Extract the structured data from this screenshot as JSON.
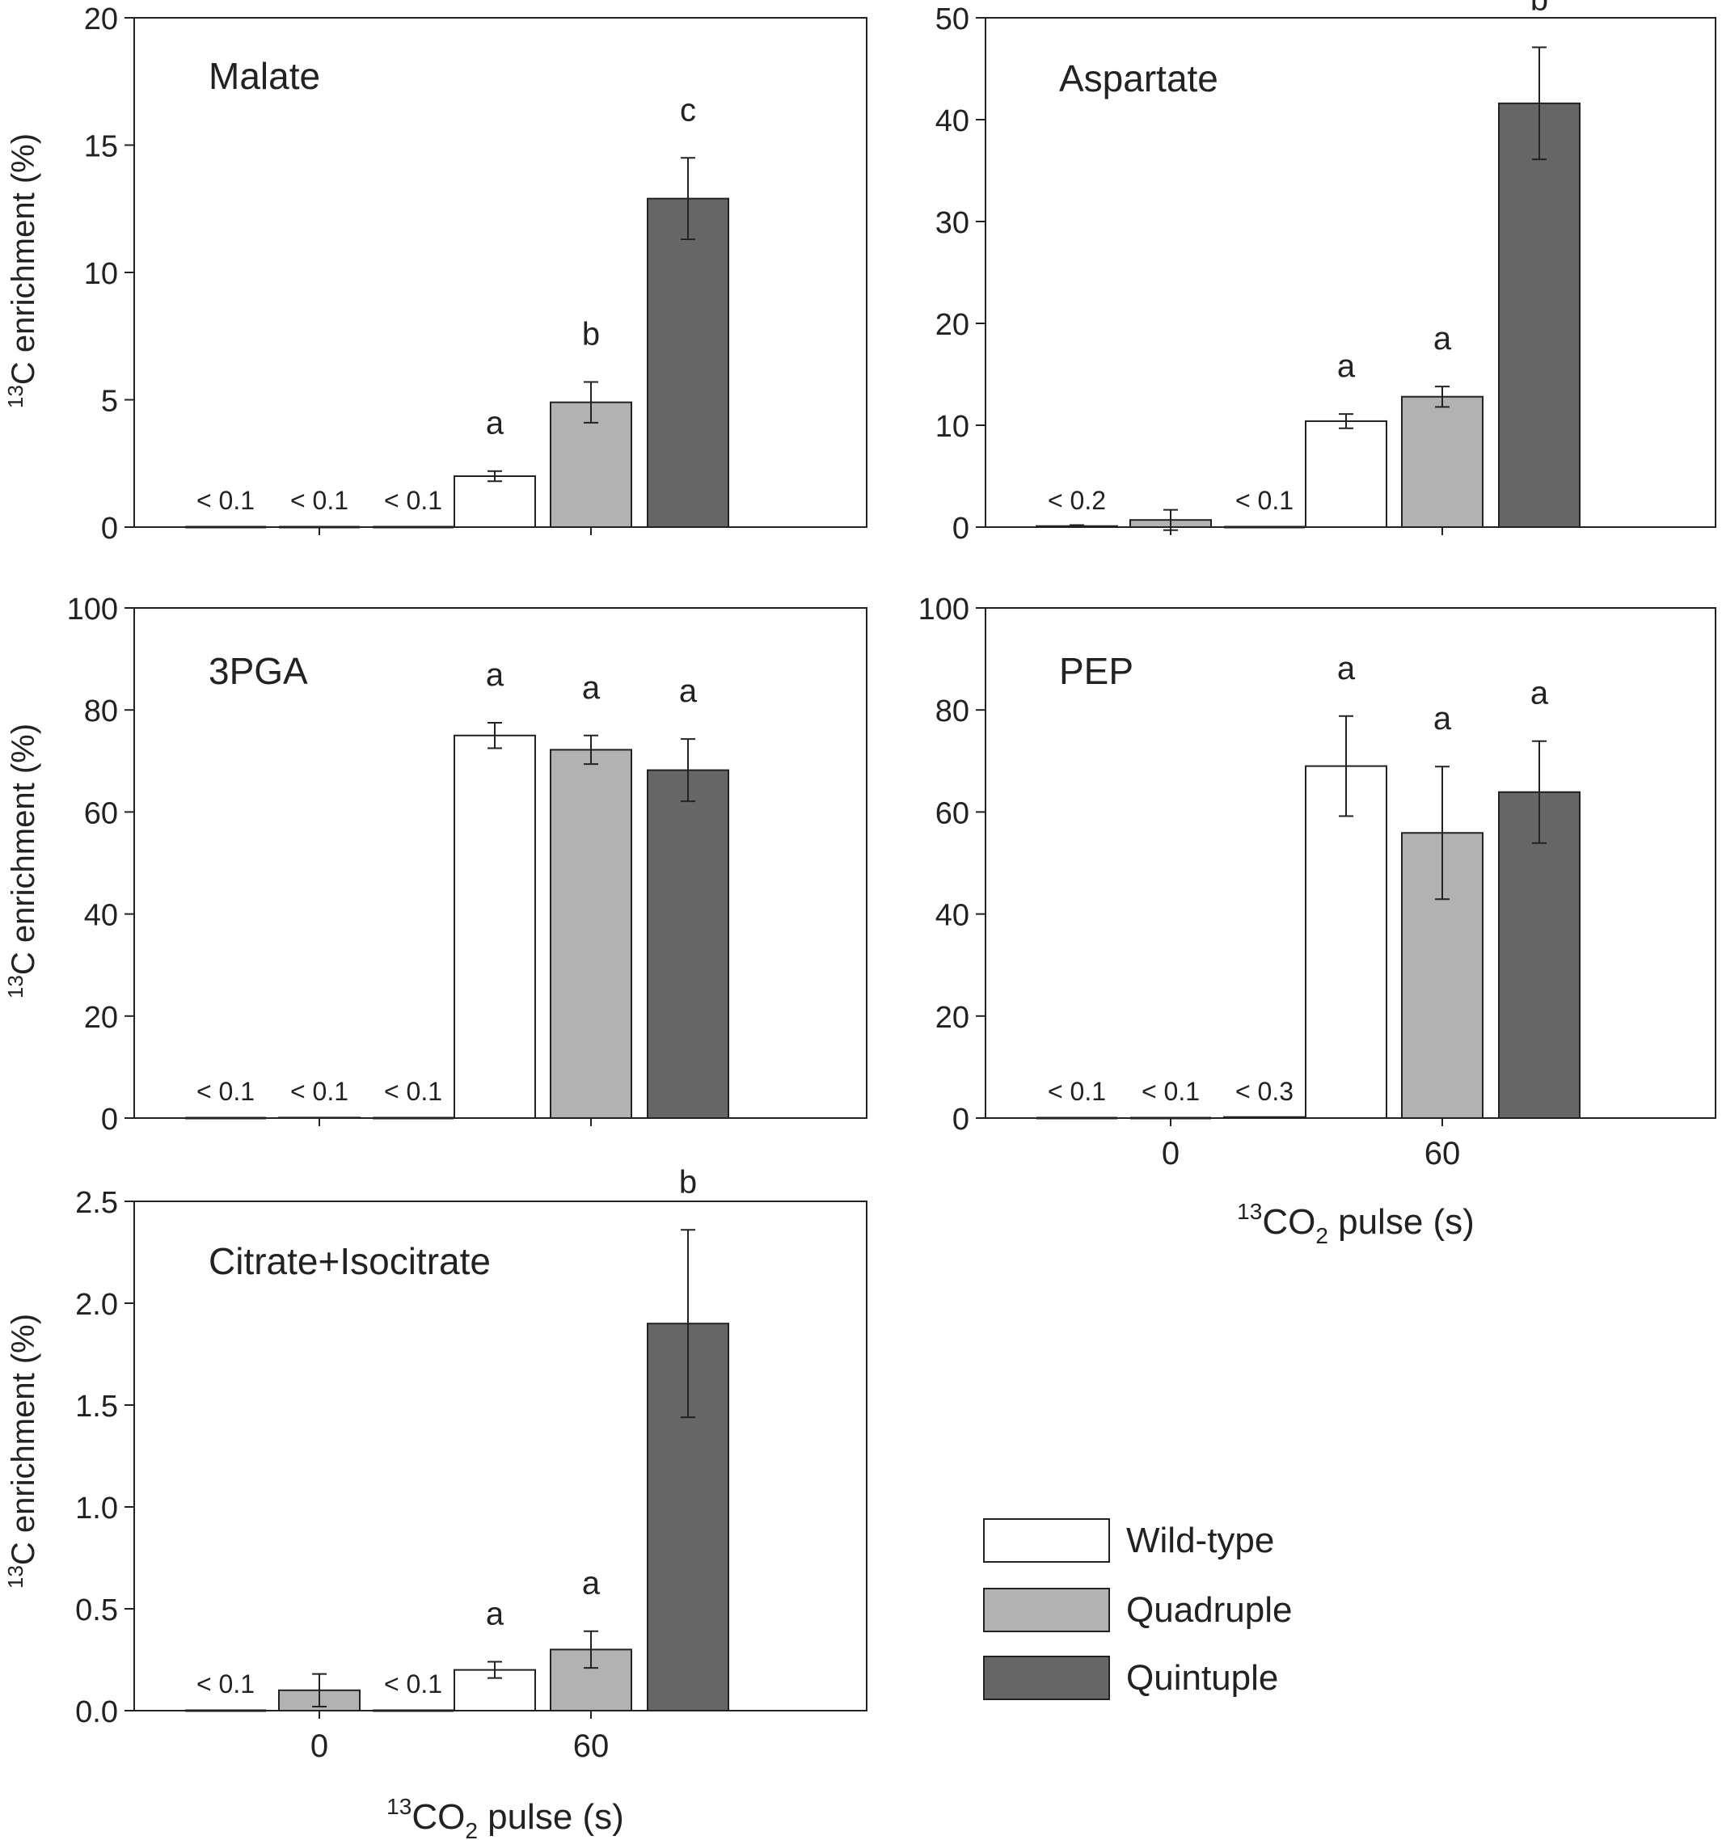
{
  "colors": {
    "wild_type": "#ffffff",
    "quadruple": "#b2b2b2",
    "quintuple": "#666666",
    "axis": "#222222"
  },
  "legend": [
    {
      "key": "wild_type",
      "label": "Wild-type"
    },
    {
      "key": "quadruple",
      "label": "Quadruple"
    },
    {
      "key": "quintuple",
      "label": "Quintuple"
    }
  ],
  "xlabel": {
    "sup": "13",
    "pre": "CO",
    "sub": "2",
    "post": " pulse (s)"
  },
  "ylabel": {
    "sup": "13",
    "text": "C enrichment (%)"
  },
  "chart_data": [
    {
      "type": "bar",
      "title": "Malate",
      "categories": [
        "0",
        "60"
      ],
      "ylim": [
        0,
        20
      ],
      "yticks": [
        "0",
        "5",
        "10",
        "15",
        "20"
      ],
      "xtick_labels_shown": false,
      "xlabel_shown": false,
      "series": [
        {
          "name": "Wild-type",
          "values": [
            0,
            2.0
          ],
          "errors": [
            0,
            0.2
          ],
          "letters": [
            "< 0.1",
            "a"
          ]
        },
        {
          "name": "Quadruple",
          "values": [
            0,
            4.9
          ],
          "errors": [
            0,
            0.8
          ],
          "letters": [
            "< 0.1",
            "b"
          ]
        },
        {
          "name": "Quintuple",
          "values": [
            0,
            12.9
          ],
          "errors": [
            0,
            1.6
          ],
          "letters": [
            "< 0.1",
            "c"
          ]
        }
      ]
    },
    {
      "type": "bar",
      "title": "Aspartate",
      "categories": [
        "0",
        "60"
      ],
      "ylim": [
        0,
        50
      ],
      "yticks": [
        "0",
        "10",
        "20",
        "30",
        "40",
        "50"
      ],
      "xtick_labels_shown": false,
      "xlabel_shown": false,
      "series": [
        {
          "name": "Wild-type",
          "values": [
            0.1,
            10.4
          ],
          "errors": [
            0.1,
            0.7
          ],
          "letters": [
            "< 0.2",
            "a"
          ]
        },
        {
          "name": "Quadruple",
          "values": [
            0.7,
            12.8
          ],
          "errors": [
            1.0,
            1.0
          ],
          "letters": [
            "",
            "a"
          ]
        },
        {
          "name": "Quintuple",
          "values": [
            0,
            41.6
          ],
          "errors": [
            0,
            5.5
          ],
          "letters": [
            "< 0.1",
            "b"
          ]
        }
      ]
    },
    {
      "type": "bar",
      "title": "3PGA",
      "categories": [
        "0",
        "60"
      ],
      "ylim": [
        0,
        100
      ],
      "yticks": [
        "0",
        "20",
        "40",
        "60",
        "80",
        "100"
      ],
      "xtick_labels_shown": false,
      "xlabel_shown": false,
      "series": [
        {
          "name": "Wild-type",
          "values": [
            0,
            75
          ],
          "errors": [
            0,
            2.5
          ],
          "letters": [
            "< 0.1",
            "a"
          ]
        },
        {
          "name": "Quadruple",
          "values": [
            0.1,
            72.2
          ],
          "errors": [
            0,
            2.8
          ],
          "letters": [
            "< 0.1",
            "a"
          ]
        },
        {
          "name": "Quintuple",
          "values": [
            0,
            68.2
          ],
          "errors": [
            0,
            6.1
          ],
          "letters": [
            "< 0.1",
            "a"
          ]
        }
      ]
    },
    {
      "type": "bar",
      "title": "PEP",
      "categories": [
        "0",
        "60"
      ],
      "ylim": [
        0,
        100
      ],
      "yticks": [
        "0",
        "20",
        "40",
        "60",
        "80",
        "100"
      ],
      "xtick_labels_shown": true,
      "xlabel_shown": true,
      "series": [
        {
          "name": "Wild-type",
          "values": [
            0.05,
            69
          ],
          "errors": [
            0,
            9.8
          ],
          "letters": [
            "< 0.1",
            "a"
          ]
        },
        {
          "name": "Quadruple",
          "values": [
            0.05,
            55.9
          ],
          "errors": [
            0,
            13
          ],
          "letters": [
            "< 0.1",
            "a"
          ]
        },
        {
          "name": "Quintuple",
          "values": [
            0.2,
            63.9
          ],
          "errors": [
            0,
            10
          ],
          "letters": [
            "< 0.3",
            "a"
          ]
        }
      ]
    },
    {
      "type": "bar",
      "title": "Citrate+Isocitrate",
      "categories": [
        "0",
        "60"
      ],
      "ylim": [
        0,
        2.5
      ],
      "yticks": [
        "0.0",
        "0.5",
        "1.0",
        "1.5",
        "2.0",
        "2.5"
      ],
      "xtick_labels_shown": true,
      "xlabel_shown": true,
      "series": [
        {
          "name": "Wild-type",
          "values": [
            0,
            0.2
          ],
          "errors": [
            0,
            0.04
          ],
          "letters": [
            "< 0.1",
            "a"
          ]
        },
        {
          "name": "Quadruple",
          "values": [
            0.1,
            0.3
          ],
          "errors": [
            0.08,
            0.09
          ],
          "letters": [
            "",
            "a"
          ]
        },
        {
          "name": "Quintuple",
          "values": [
            0,
            1.9
          ],
          "errors": [
            0,
            0.46
          ],
          "letters": [
            "< 0.1",
            "b"
          ]
        }
      ]
    }
  ]
}
